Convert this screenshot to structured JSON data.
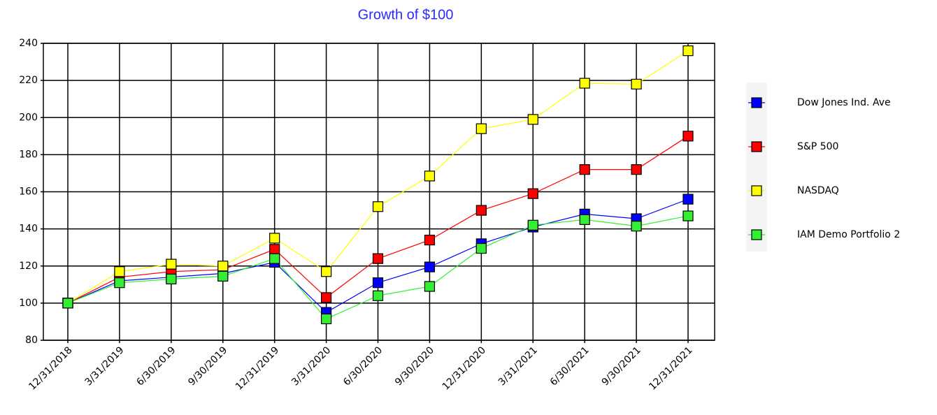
{
  "chart_data": {
    "type": "line",
    "title": "Growth of $100",
    "categories": [
      "12/31/2018",
      "3/31/2019",
      "6/30/2019",
      "9/30/2019",
      "12/31/2019",
      "3/31/2020",
      "6/30/2020",
      "9/30/2020",
      "12/31/2020",
      "3/31/2021",
      "6/30/2021",
      "9/30/2021",
      "12/31/2021"
    ],
    "series": [
      {
        "name": "Dow Jones Ind. Ave",
        "color": "#0000ff",
        "values": [
          100,
          112,
          114,
          116,
          122,
          95,
          111,
          119.5,
          132,
          141,
          148,
          145.5,
          156
        ]
      },
      {
        "name": "S&P 500",
        "color": "#ff0000",
        "values": [
          100,
          114,
          117,
          118,
          129,
          103,
          124,
          134,
          150,
          159,
          172,
          172,
          190
        ]
      },
      {
        "name": "NASDAQ",
        "color": "#ffff00",
        "values": [
          100,
          117,
          121,
          120,
          135,
          117,
          152,
          168.5,
          194,
          199,
          218.5,
          218,
          236
        ]
      },
      {
        "name": "IAM Demo Portfolio 2",
        "color": "#33ee33",
        "values": [
          100,
          111,
          113,
          114.5,
          124,
          91.5,
          104,
          109,
          129.5,
          142,
          145,
          141.5,
          147
        ]
      }
    ],
    "ylim": [
      80,
      240
    ],
    "yticks": [
      80,
      100,
      120,
      140,
      160,
      180,
      200,
      220,
      240
    ],
    "grid": true,
    "legend": "right"
  }
}
